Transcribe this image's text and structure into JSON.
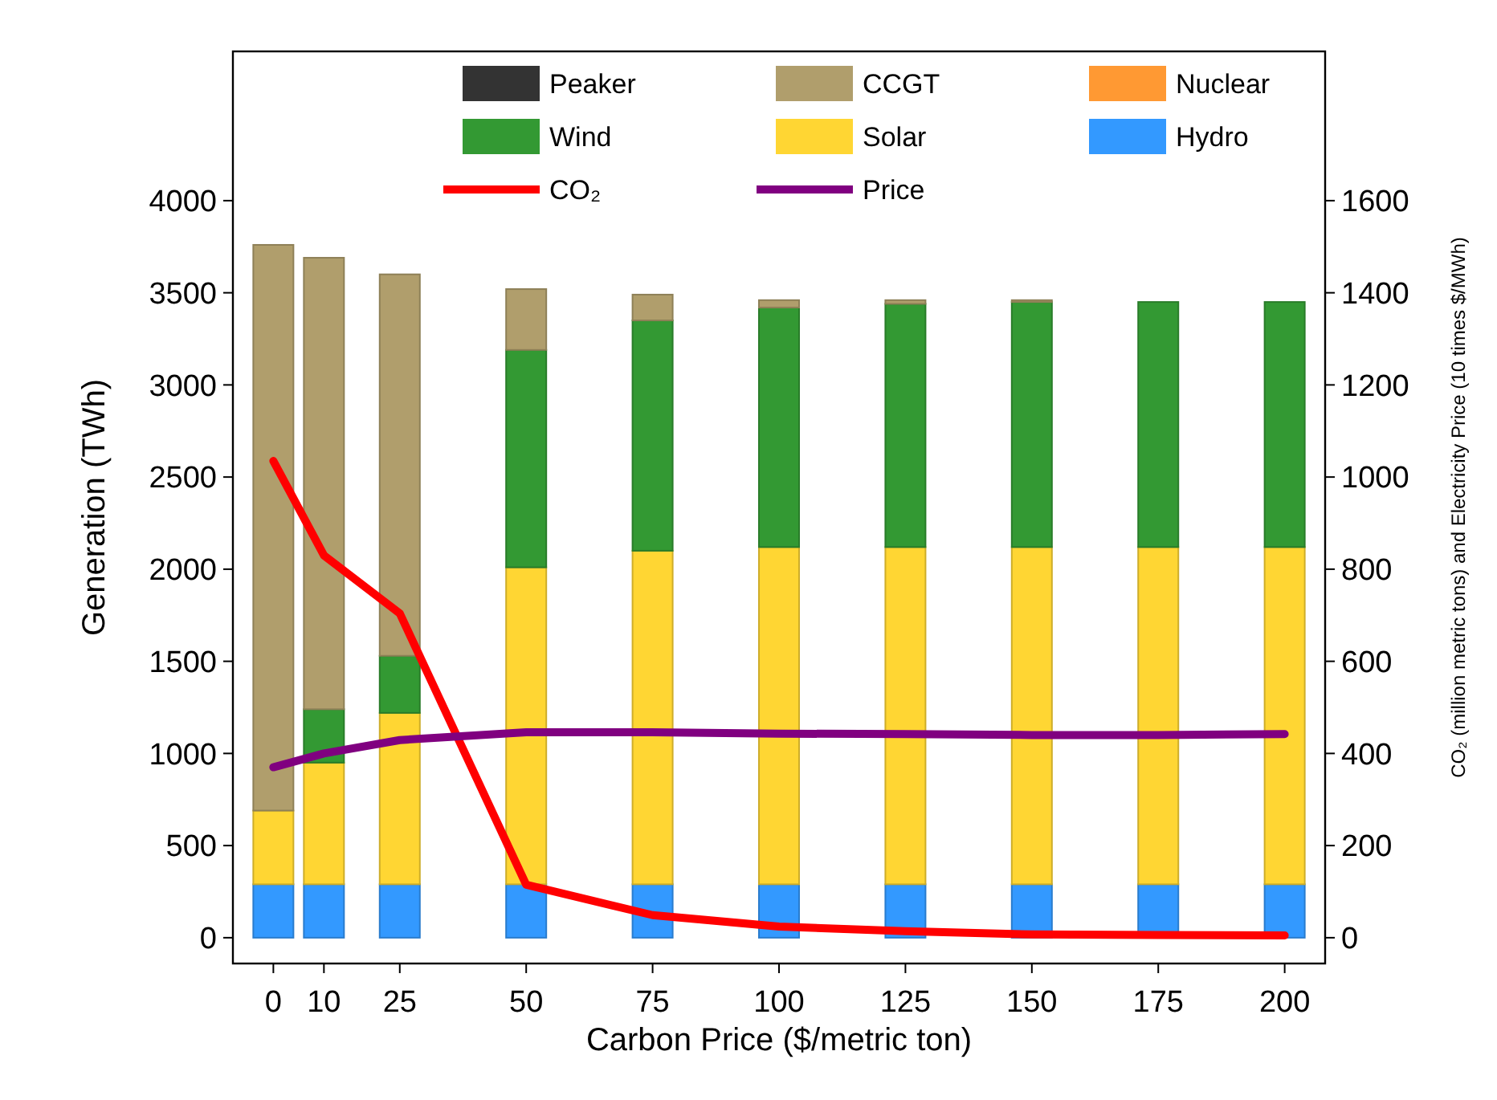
{
  "chart_data": {
    "type": "bar",
    "stacked": true,
    "xlabel": "Carbon Price ($/metric ton)",
    "ylabel": "Generation (TWh)",
    "y2label": "CO₂ (million metric tons) and Electricity Price (10 times $/MWh)",
    "x": [
      0,
      10,
      25,
      50,
      75,
      100,
      125,
      150,
      175,
      200
    ],
    "xlim": [
      -8,
      208
    ],
    "xticks": [
      0,
      10,
      25,
      50,
      75,
      100,
      125,
      150,
      175,
      200
    ],
    "ylim": [
      -140,
      4810
    ],
    "yticks": [
      0,
      500,
      1000,
      1500,
      2000,
      2500,
      3000,
      3500,
      4000
    ],
    "y2lim": [
      -56,
      1924
    ],
    "y2ticks": [
      0,
      200,
      400,
      600,
      800,
      1000,
      1200,
      1400,
      1600
    ],
    "legend": "top",
    "grid": false,
    "series": [
      {
        "name": "Hydro",
        "color": "#3399ff",
        "values": [
          290,
          290,
          290,
          290,
          290,
          290,
          290,
          290,
          290,
          290
        ]
      },
      {
        "name": "Solar",
        "color": "#ffd633",
        "values": [
          400,
          660,
          930,
          1720,
          1810,
          1830,
          1830,
          1830,
          1830,
          1830
        ]
      },
      {
        "name": "Wind",
        "color": "#339933",
        "values": [
          0,
          290,
          310,
          1180,
          1250,
          1300,
          1320,
          1330,
          1330,
          1330
        ]
      },
      {
        "name": "Nuclear",
        "color": "#ff9933",
        "values": [
          0,
          0,
          0,
          0,
          0,
          0,
          0,
          0,
          0,
          0
        ]
      },
      {
        "name": "CCGT",
        "color": "#b09e6c",
        "values": [
          3070,
          2450,
          2070,
          330,
          140,
          40,
          20,
          10,
          0,
          0
        ]
      },
      {
        "name": "Peaker",
        "color": "#333333",
        "values": [
          0,
          0,
          0,
          0,
          0,
          0,
          0,
          0,
          0,
          0
        ]
      },
      {
        "name": "CO₂",
        "type": "line",
        "axis": "y2",
        "color": "#ff0000",
        "values": [
          1035,
          830,
          704,
          115,
          49,
          24,
          14,
          7,
          6,
          5
        ]
      },
      {
        "name": "Price",
        "type": "line",
        "axis": "y2",
        "color": "#800080",
        "values": [
          370,
          400,
          429,
          446,
          446,
          443,
          442,
          440,
          440,
          442
        ]
      }
    ]
  }
}
